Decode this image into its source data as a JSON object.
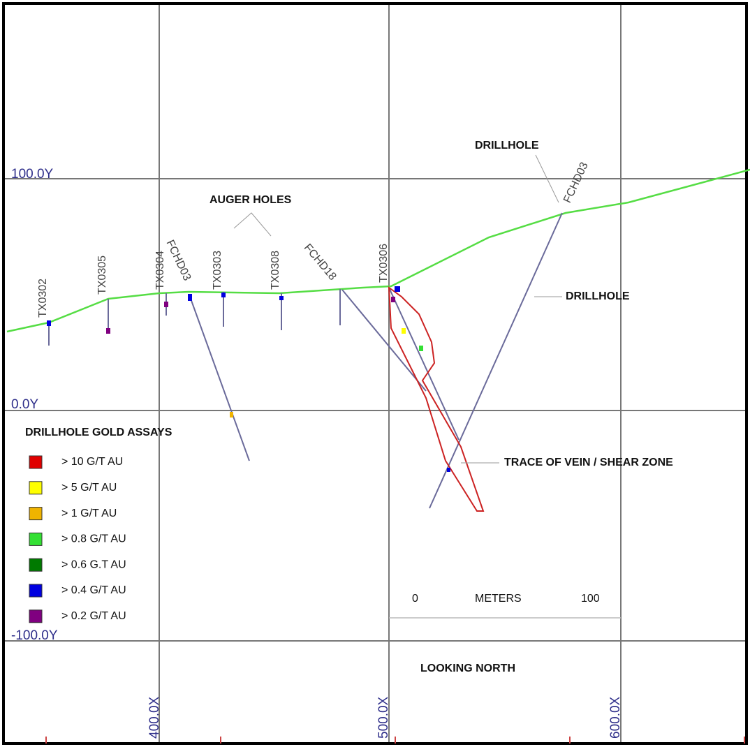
{
  "coordinates": {
    "y": [
      "100.0Y",
      "0.0Y",
      "-100.0Y"
    ],
    "x": [
      "400.0X",
      "500.0X",
      "600.0X"
    ]
  },
  "holes": [
    "TX0302",
    "TX0305",
    "TX0304",
    "FCHD03",
    "TX0303",
    "TX0308",
    "FCHD18",
    "TX0306",
    "FCHD03"
  ],
  "annotations": [
    "DRILLHOLE",
    "AUGER HOLES",
    "DRILLHOLE",
    "TRACE OF VEIN / SHEAR ZONE"
  ],
  "legend": {
    "title": "DRILLHOLE GOLD ASSAYS",
    "items": [
      {
        "label": "> 10 G/T AU",
        "color": "#e00000"
      },
      {
        "label": "> 5 G/T AU",
        "color": "#ffff00"
      },
      {
        "label": "> 1 G/T AU",
        "color": "#f0b400"
      },
      {
        "label": "> 0.8 G/T AU",
        "color": "#33e033"
      },
      {
        "label": "> 0.6 G.T AU",
        "color": "#007a00"
      },
      {
        "label": "> 0.4 G/T AU",
        "color": "#0000e0"
      },
      {
        "label": "> 0.2 G/T AU",
        "color": "#800080"
      }
    ]
  },
  "scale": {
    "start": "0",
    "unit": "METERS",
    "end": "100"
  },
  "view": "LOOKING NORTH"
}
